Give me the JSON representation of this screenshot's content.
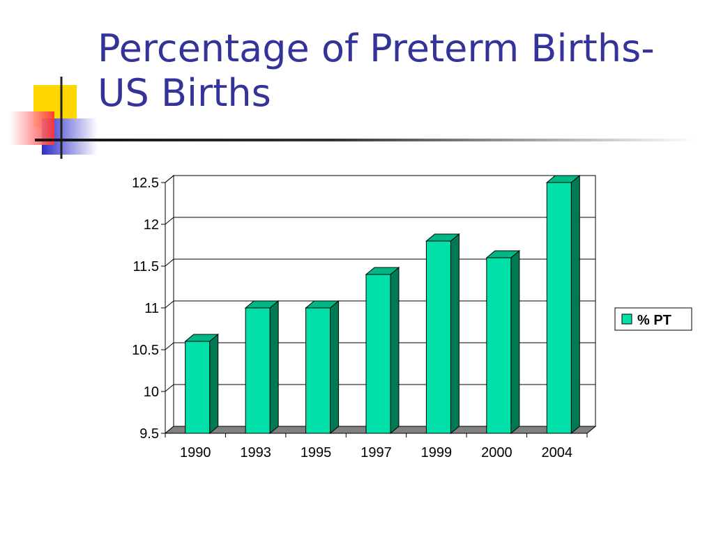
{
  "slide": {
    "title_line1": "Percentage of Preterm Births-",
    "title_line2": "US Births"
  },
  "colors": {
    "title": "#333399",
    "bar_front": "#00E0A8",
    "bar_top": "#00B885",
    "bar_side": "#007A55",
    "floor": "#808080",
    "deco_yellow": "#FFD700",
    "deco_red": "#FF4040",
    "deco_blue": "#3333CC"
  },
  "chart_data": {
    "type": "bar",
    "categories": [
      "1990",
      "1993",
      "1995",
      "1997",
      "1999",
      "2000",
      "2004"
    ],
    "series": [
      {
        "name": "% PT",
        "values": [
          10.6,
          11.0,
          11.0,
          11.4,
          11.8,
          11.6,
          12.5
        ]
      }
    ],
    "ylim": [
      9.5,
      12.5
    ],
    "yticks": [
      "9.5",
      "10",
      "10.5",
      "11",
      "11.5",
      "12",
      "12.5"
    ],
    "grid": true,
    "legend": "right",
    "style": "3d-column"
  }
}
